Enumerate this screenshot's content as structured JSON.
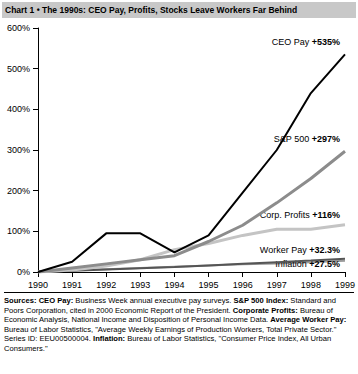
{
  "chart_data": {
    "type": "line",
    "title": "Chart 1 • The 1990s: CEO Pay, Profits, Stocks Leave Workers Far Behind",
    "categories": [
      "1990",
      "1991",
      "1992",
      "1993",
      "1994",
      "1995",
      "1996",
      "1997",
      "1998",
      "1999"
    ],
    "series": [
      {
        "name": "CEO Pay",
        "color": "#000000",
        "annotation": "+535%",
        "values": [
          0,
          25,
          95,
          95,
          48,
          90,
          195,
          300,
          440,
          535
        ]
      },
      {
        "name": "S&P 500",
        "color": "#8c8c8c",
        "annotation": "+297%",
        "values": [
          0,
          10,
          20,
          30,
          40,
          75,
          115,
          170,
          230,
          297
        ]
      },
      {
        "name": "Corp. Profits",
        "color": "#c4c4c4",
        "annotation": "+116%",
        "values": [
          0,
          5,
          15,
          30,
          55,
          70,
          90,
          105,
          105,
          116
        ]
      },
      {
        "name": "Worker Pay",
        "color": "#555555",
        "annotation": "+32.3%",
        "values": [
          0,
          3,
          6,
          9,
          12,
          16,
          20,
          24,
          28,
          32.3
        ]
      },
      {
        "name": "Inflation",
        "color": "#9a9a9a",
        "annotation": "+27.5%",
        "values": [
          0,
          4,
          7,
          10,
          13,
          16,
          19,
          21,
          24,
          27.5
        ]
      }
    ],
    "ylim": [
      0,
      600
    ],
    "yticks": [
      {
        "value": 0,
        "label": "0%"
      },
      {
        "value": 100,
        "label": "100%"
      },
      {
        "value": 200,
        "label": "200%"
      },
      {
        "value": 300,
        "label": "300%"
      },
      {
        "value": 400,
        "label": "400%"
      },
      {
        "value": 500,
        "label": "500%"
      },
      {
        "value": 600,
        "label": "600%"
      }
    ],
    "grid": false,
    "sources": {
      "heading": "Sources:",
      "items": [
        {
          "label": "CEO Pay:",
          "text": "Business Week annual executive pay surveys."
        },
        {
          "label": "S&P 500 Index:",
          "text": "Standard and Poors Corporation, cited in 2000 Economic Report of the President."
        },
        {
          "label": "Corporate Profits:",
          "text": "Bureau of Economic Analysis, National Income and Disposition of Personal Income Data."
        },
        {
          "label": "Average Worker Pay:",
          "text": "Bureau of Labor Statistics, \"Average Weekly Earnings of Production Workers, Total Private Sector.\" Series ID: EEU00500004."
        },
        {
          "label": "Inflation:",
          "text": "Bureau of Labor Statistics, \"Consumer Price Index, All Urban Consumers.\""
        }
      ]
    }
  }
}
